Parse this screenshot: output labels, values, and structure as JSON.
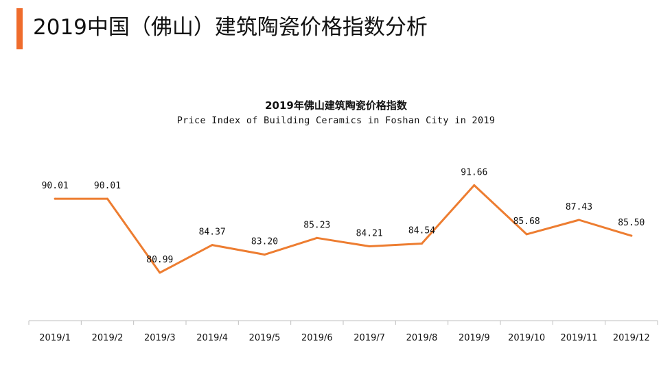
{
  "header": {
    "title": "2019中国（佛山）建筑陶瓷价格指数分析",
    "accent_color": "#ef6c2c"
  },
  "chart_data": {
    "type": "line",
    "title": "2019年佛山建筑陶瓷价格指数",
    "subtitle": "Price Index of Building Ceramics in Foshan City in 2019",
    "xlabel": "",
    "ylabel": "",
    "categories": [
      "2019/1",
      "2019/2",
      "2019/3",
      "2019/4",
      "2019/5",
      "2019/6",
      "2019/7",
      "2019/8",
      "2019/9",
      "2019/10",
      "2019/11",
      "2019/12"
    ],
    "values": [
      90.01,
      90.01,
      80.99,
      84.37,
      83.2,
      85.23,
      84.21,
      84.54,
      91.66,
      85.68,
      87.43,
      85.5
    ],
    "value_labels": [
      "90.01",
      "90.01",
      "80.99",
      "84.37",
      "83.20",
      "85.23",
      "84.21",
      "84.54",
      "91.66",
      "85.68",
      "87.43",
      "85.50"
    ],
    "line_color": "#ed7d31",
    "grid": false,
    "legend": "none"
  }
}
